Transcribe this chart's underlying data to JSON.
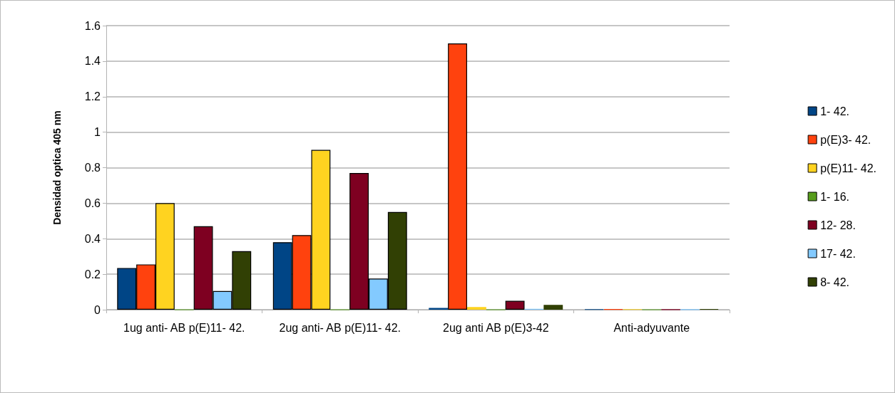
{
  "chart_data": {
    "type": "bar",
    "ylabel": "Densidad optica 405 nm",
    "categories": [
      "1ug anti- AB p(E)11- 42.",
      "2ug anti- AB p(E)11- 42.",
      "2ug anti AB p(E)3-42",
      "Anti-adyuvante"
    ],
    "series": [
      {
        "name": "1- 42.",
        "color": "#004586",
        "values": [
          0.235,
          0.38,
          0.01,
          0.002
        ]
      },
      {
        "name": "p(E)3- 42.",
        "color": "#ff420e",
        "values": [
          0.255,
          0.42,
          1.5,
          0.003
        ]
      },
      {
        "name": "p(E)11- 42.",
        "color": "#ffd320",
        "values": [
          0.6,
          0.9,
          0.015,
          0.002
        ]
      },
      {
        "name": "1- 16.",
        "color": "#579d1c",
        "values": [
          0,
          0,
          0,
          0
        ]
      },
      {
        "name": "12- 28.",
        "color": "#7e0021",
        "values": [
          0.47,
          0.77,
          0.05,
          0.001
        ]
      },
      {
        "name": "17- 42.",
        "color": "#83caff",
        "values": [
          0.105,
          0.175,
          0.005,
          0.001
        ]
      },
      {
        "name": "8- 42.",
        "color": "#314004",
        "values": [
          0.33,
          0.55,
          0.027,
          0.004
        ]
      }
    ],
    "ylim": [
      0,
      1.6
    ],
    "yticks": [
      0,
      0.2,
      0.4,
      0.6,
      0.8,
      1,
      1.2,
      1.4,
      1.6
    ],
    "grid": "y",
    "legend": "right"
  }
}
